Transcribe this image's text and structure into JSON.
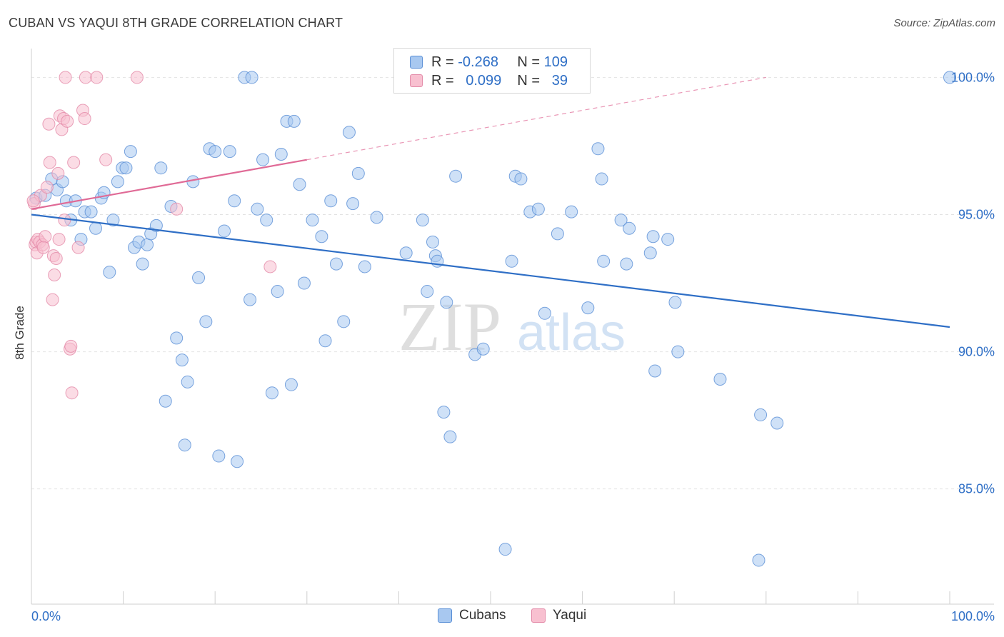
{
  "title": "CUBAN VS YAQUI 8TH GRADE CORRELATION CHART",
  "source": "Source: ZipAtlas.com",
  "watermark": {
    "zip": "ZIP",
    "atlas": "atlas"
  },
  "legend": {
    "r_label": "R =",
    "n_label": "N =",
    "rows": [
      {
        "r": "-0.268",
        "n": "109",
        "color": "#a8c8f0",
        "border": "#5a8fd6"
      },
      {
        "r": "0.099",
        "n": "39",
        "color": "#f8c0d0",
        "border": "#e38aa8"
      }
    ]
  },
  "chart_data": {
    "type": "scatter",
    "ylabel": "8th Grade",
    "xlim": [
      0,
      100
    ],
    "ylim": [
      80.8,
      101
    ],
    "x_ticks": [
      "0.0%",
      "100.0%"
    ],
    "y_ticks": [
      {
        "value": 100,
        "label": "100.0%"
      },
      {
        "value": 95,
        "label": "95.0%"
      },
      {
        "value": 90,
        "label": "90.0%"
      },
      {
        "value": 85,
        "label": "85.0%"
      }
    ],
    "series": [
      {
        "name": "Cubans",
        "color": "#a8c8f0",
        "stroke": "#5a8fd6",
        "trend": {
          "x0": 0,
          "y0": 95.0,
          "x1": 100,
          "y1": 90.9,
          "color": "#2f6fc6"
        },
        "points": [
          [
            0.5,
            95.6
          ],
          [
            1.5,
            95.7
          ],
          [
            2.2,
            96.3
          ],
          [
            2.8,
            95.9
          ],
          [
            3.4,
            96.2
          ],
          [
            3.8,
            95.5
          ],
          [
            4.3,
            94.8
          ],
          [
            4.8,
            95.5
          ],
          [
            5.4,
            94.1
          ],
          [
            5.8,
            95.1
          ],
          [
            6.5,
            95.1
          ],
          [
            7,
            94.5
          ],
          [
            7.6,
            95.6
          ],
          [
            7.9,
            95.8
          ],
          [
            8.5,
            92.9
          ],
          [
            8.9,
            94.8
          ],
          [
            9.4,
            96.2
          ],
          [
            9.9,
            96.7
          ],
          [
            10.3,
            96.7
          ],
          [
            10.8,
            97.3
          ],
          [
            11.2,
            93.8
          ],
          [
            11.7,
            94
          ],
          [
            12.1,
            93.2
          ],
          [
            12.6,
            93.9
          ],
          [
            13,
            94.3
          ],
          [
            13.6,
            94.6
          ],
          [
            14.1,
            96.7
          ],
          [
            14.6,
            88.2
          ],
          [
            15.2,
            95.3
          ],
          [
            15.8,
            90.5
          ],
          [
            16.4,
            89.7
          ],
          [
            16.7,
            86.6
          ],
          [
            17,
            88.9
          ],
          [
            17.6,
            96.2
          ],
          [
            18.2,
            92.7
          ],
          [
            19,
            91.1
          ],
          [
            19.4,
            97.4
          ],
          [
            20,
            97.3
          ],
          [
            20.4,
            86.2
          ],
          [
            21,
            94.4
          ],
          [
            21.6,
            97.3
          ],
          [
            22.1,
            95.5
          ],
          [
            22.4,
            86
          ],
          [
            23.2,
            100
          ],
          [
            24,
            100
          ],
          [
            23.8,
            91.9
          ],
          [
            24.6,
            95.2
          ],
          [
            25.2,
            97
          ],
          [
            25.6,
            94.8
          ],
          [
            26.2,
            88.5
          ],
          [
            26.8,
            92.2
          ],
          [
            27.2,
            97.2
          ],
          [
            27.8,
            98.4
          ],
          [
            28.3,
            88.8
          ],
          [
            28.6,
            98.4
          ],
          [
            29.2,
            96.1
          ],
          [
            29.7,
            92.5
          ],
          [
            30.6,
            94.8
          ],
          [
            31.6,
            94.2
          ],
          [
            32,
            90.4
          ],
          [
            32.6,
            95.5
          ],
          [
            33.2,
            93.2
          ],
          [
            34,
            91.1
          ],
          [
            34.6,
            98
          ],
          [
            35,
            95.4
          ],
          [
            35.6,
            96.5
          ],
          [
            36.3,
            93.1
          ],
          [
            37.6,
            94.9
          ],
          [
            40.8,
            93.6
          ],
          [
            42.6,
            94.8
          ],
          [
            43.1,
            92.2
          ],
          [
            43.7,
            94
          ],
          [
            44,
            93.5
          ],
          [
            44.2,
            93.3
          ],
          [
            44.9,
            87.8
          ],
          [
            45.2,
            91.8
          ],
          [
            45.6,
            86.9
          ],
          [
            46.2,
            96.4
          ],
          [
            48.3,
            89.9
          ],
          [
            49.2,
            90.1
          ],
          [
            51.6,
            82.8
          ],
          [
            52.3,
            93.3
          ],
          [
            52.7,
            96.4
          ],
          [
            53.3,
            96.3
          ],
          [
            54.3,
            95.1
          ],
          [
            55.2,
            95.2
          ],
          [
            55.9,
            91.4
          ],
          [
            57.3,
            94.3
          ],
          [
            58.8,
            95.1
          ],
          [
            60.6,
            91.6
          ],
          [
            61.7,
            97.4
          ],
          [
            62.1,
            96.3
          ],
          [
            62.3,
            93.3
          ],
          [
            64.2,
            94.8
          ],
          [
            64.8,
            93.2
          ],
          [
            65.1,
            94.5
          ],
          [
            67.4,
            93.6
          ],
          [
            67.9,
            89.3
          ],
          [
            67.7,
            94.2
          ],
          [
            69.3,
            94.1
          ],
          [
            70.1,
            91.8
          ],
          [
            70.4,
            90
          ],
          [
            75,
            89
          ],
          [
            79.4,
            87.7
          ],
          [
            79.2,
            82.4
          ],
          [
            81.2,
            87.4
          ],
          [
            100,
            100
          ]
        ]
      },
      {
        "name": "Yaqui",
        "color": "#f8c0d0",
        "stroke": "#e38aa8",
        "trend": {
          "x0": 0,
          "y0": 95.2,
          "x1": 30,
          "y1": 97.0,
          "x2": 80,
          "y2": 100.0,
          "color": "#e06a96"
        },
        "points": [
          [
            0.3,
            95.4
          ],
          [
            0.4,
            93.9
          ],
          [
            0.5,
            94
          ],
          [
            0.6,
            93.6
          ],
          [
            0.7,
            94.1
          ],
          [
            0.9,
            94
          ],
          [
            1.0,
            95.7
          ],
          [
            1.2,
            93.9
          ],
          [
            1.5,
            94.2
          ],
          [
            1.7,
            96
          ],
          [
            1.9,
            98.3
          ],
          [
            2.0,
            96.9
          ],
          [
            2.3,
            91.9
          ],
          [
            2.4,
            93.5
          ],
          [
            2.5,
            92.8
          ],
          [
            2.7,
            93.4
          ],
          [
            2.9,
            96.5
          ],
          [
            3.0,
            94.1
          ],
          [
            3.1,
            98.6
          ],
          [
            3.3,
            98.1
          ],
          [
            3.5,
            98.5
          ],
          [
            3.6,
            94.8
          ],
          [
            3.7,
            100
          ],
          [
            3.9,
            98.4
          ],
          [
            4.2,
            90.1
          ],
          [
            4.3,
            90.2
          ],
          [
            4.4,
            88.5
          ],
          [
            4.6,
            96.9
          ],
          [
            5.1,
            93.8
          ],
          [
            5.6,
            98.8
          ],
          [
            5.8,
            98.5
          ],
          [
            5.9,
            100
          ],
          [
            7.1,
            100
          ],
          [
            8.1,
            97
          ],
          [
            11.5,
            100
          ],
          [
            15.8,
            95.2
          ],
          [
            26,
            93.1
          ],
          [
            0.2,
            95.5
          ],
          [
            1.3,
            93.8
          ]
        ]
      }
    ]
  }
}
